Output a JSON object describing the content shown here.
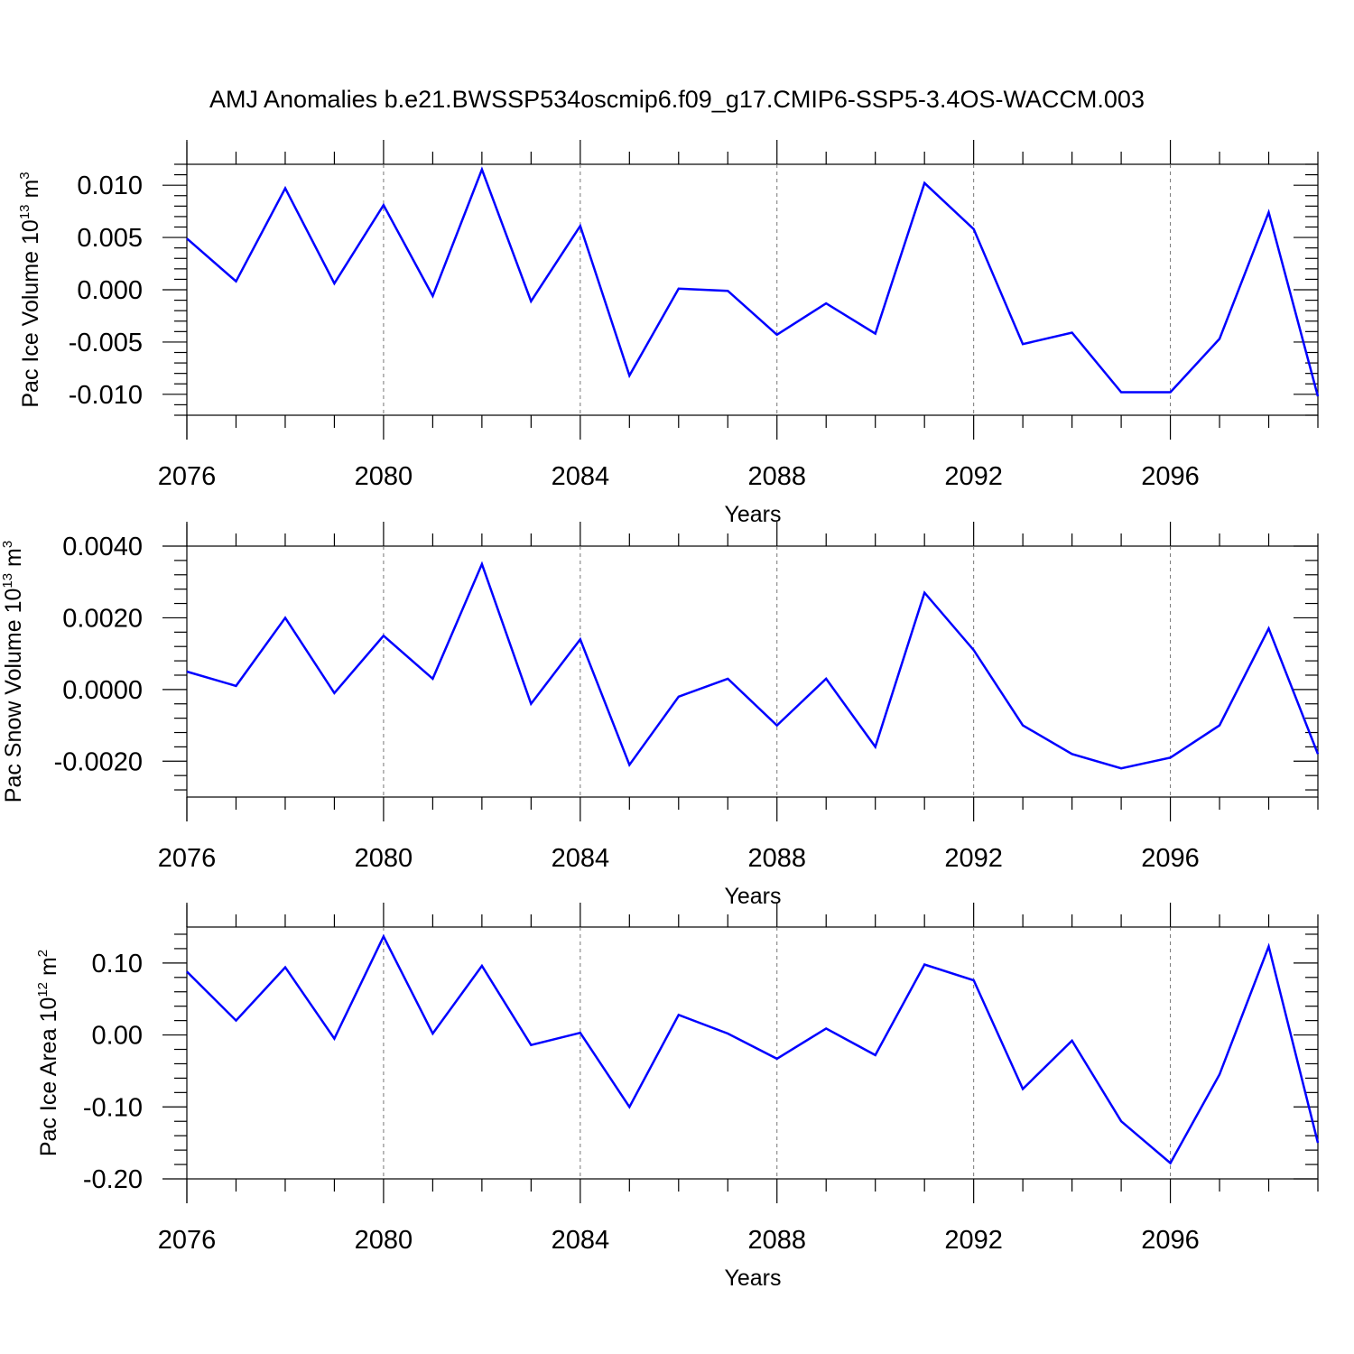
{
  "title": "AMJ Anomalies b.e21.BWSSP534oscmip6.f09_g17.CMIP6-SSP5-3.4OS-WACCM.003",
  "chart_data": [
    {
      "type": "line",
      "ylabel": "Pac Ice Volume 10",
      "ylabel_exp": "13",
      "ylabel_unit": " m",
      "ylabel_unit_exp": "3",
      "xlabel": "Years",
      "x": [
        2076,
        2077,
        2078,
        2079,
        2080,
        2081,
        2082,
        2083,
        2084,
        2085,
        2086,
        2087,
        2088,
        2089,
        2090,
        2091,
        2092,
        2093,
        2094,
        2095,
        2096,
        2097,
        2098,
        2099
      ],
      "xlim": [
        2076,
        2099
      ],
      "xticks": [
        "2076",
        "2080",
        "2084",
        "2088",
        "2092",
        "2096"
      ],
      "ylim": [
        -0.012,
        0.012
      ],
      "yticks": [
        "-0.010",
        "-0.005",
        "0.000",
        "0.005",
        "0.010"
      ],
      "grid": "vertical dashed at major x ticks",
      "series": [
        {
          "color": "#0000ff",
          "values": [
            0.0049,
            0.0008,
            0.0097,
            0.0006,
            0.0081,
            -0.0006,
            0.0115,
            -0.0011,
            0.0061,
            -0.0082,
            0.0001,
            -0.0001,
            -0.0043,
            -0.0013,
            -0.0042,
            0.0102,
            0.0058,
            -0.0052,
            -0.0041,
            -0.0098,
            -0.0098,
            -0.0047,
            0.0074,
            -0.0102
          ]
        }
      ]
    },
    {
      "type": "line",
      "ylabel": "Pac Snow Volume 10",
      "ylabel_exp": "13",
      "ylabel_unit": " m",
      "ylabel_unit_exp": "3",
      "xlabel": "Years",
      "x": [
        2076,
        2077,
        2078,
        2079,
        2080,
        2081,
        2082,
        2083,
        2084,
        2085,
        2086,
        2087,
        2088,
        2089,
        2090,
        2091,
        2092,
        2093,
        2094,
        2095,
        2096,
        2097,
        2098,
        2099
      ],
      "xlim": [
        2076,
        2099
      ],
      "xticks": [
        "2076",
        "2080",
        "2084",
        "2088",
        "2092",
        "2096"
      ],
      "ylim": [
        -0.003,
        0.004
      ],
      "yticks": [
        "-0.0020",
        "0.0000",
        "0.0020",
        "0.0040"
      ],
      "grid": "vertical dashed at major x ticks",
      "series": [
        {
          "color": "#0000ff",
          "values": [
            0.0005,
            0.0001,
            0.002,
            -0.0001,
            0.0015,
            0.0003,
            0.0035,
            -0.0004,
            0.0014,
            -0.0021,
            -0.0002,
            0.0003,
            -0.001,
            0.0003,
            -0.0016,
            0.0027,
            0.0011,
            -0.001,
            -0.0018,
            -0.0022,
            -0.0019,
            -0.001,
            0.0017,
            -0.0018
          ]
        }
      ]
    },
    {
      "type": "line",
      "ylabel": "Pac Ice Area 10",
      "ylabel_exp": "12",
      "ylabel_unit": " m",
      "ylabel_unit_exp": "2",
      "xlabel": "Years",
      "x": [
        2076,
        2077,
        2078,
        2079,
        2080,
        2081,
        2082,
        2083,
        2084,
        2085,
        2086,
        2087,
        2088,
        2089,
        2090,
        2091,
        2092,
        2093,
        2094,
        2095,
        2096,
        2097,
        2098,
        2099
      ],
      "xlim": [
        2076,
        2099
      ],
      "xticks": [
        "2076",
        "2080",
        "2084",
        "2088",
        "2092",
        "2096"
      ],
      "ylim": [
        -0.2,
        0.15
      ],
      "yticks": [
        "-0.20",
        "-0.10",
        "0.00",
        "0.10"
      ],
      "grid": "vertical dashed at major x ticks",
      "series": [
        {
          "color": "#0000ff",
          "values": [
            0.088,
            0.02,
            0.094,
            -0.005,
            0.137,
            0.002,
            0.096,
            -0.014,
            0.003,
            -0.1,
            0.028,
            0.002,
            -0.033,
            0.009,
            -0.028,
            0.098,
            0.076,
            -0.075,
            -0.008,
            -0.12,
            -0.178,
            -0.055,
            0.123,
            -0.15
          ]
        }
      ]
    }
  ]
}
